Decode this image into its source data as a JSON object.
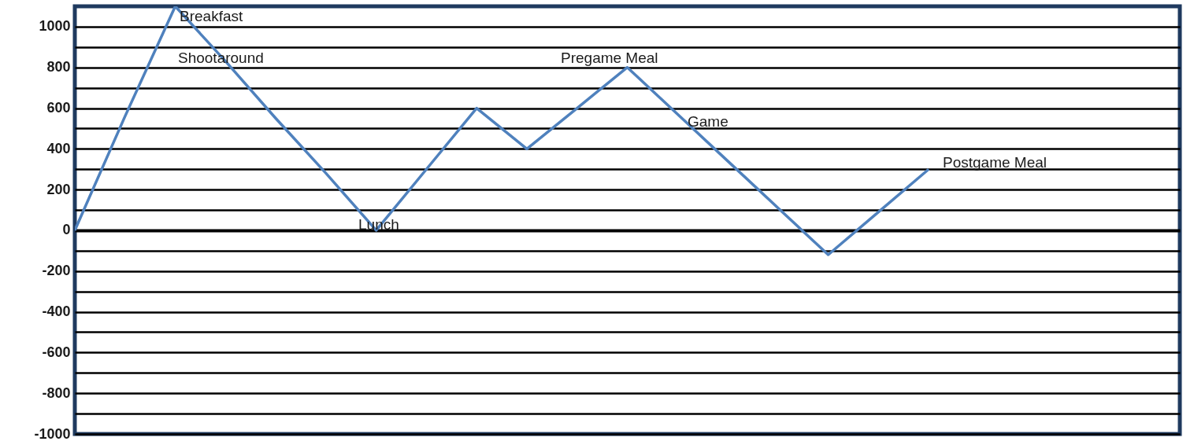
{
  "chart_data": {
    "type": "line",
    "categories": [
      null,
      null,
      null,
      null,
      null,
      null,
      null,
      null,
      null,
      null,
      null,
      null,
      null,
      null,
      null,
      null,
      null,
      null,
      null,
      null,
      null,
      null,
      null
    ],
    "series": [
      {
        "color": "#4f81bd",
        "values": [
          0,
          560,
          1100,
          830,
          550,
          280,
          0,
          300,
          600,
          400,
          600,
          800,
          570,
          340,
          110,
          -120,
          90,
          300,
          null,
          null,
          null,
          null,
          null
        ]
      }
    ],
    "ylim": [
      -1000,
      1100
    ],
    "yticks": [
      -1000,
      {
        "value": -900,
        "label": null
      },
      -800,
      {
        "value": -700,
        "label": null
      },
      -600,
      {
        "value": -500,
        "label": null
      },
      -400,
      {
        "value": -300,
        "label": null
      },
      -200,
      {
        "value": -100,
        "label": null
      },
      0,
      {
        "value": 100,
        "label": null
      },
      200,
      {
        "value": 300,
        "label": null
      },
      400,
      {
        "value": 500,
        "label": null
      },
      600,
      {
        "value": 700,
        "label": null
      },
      800,
      {
        "value": 900,
        "label": null
      },
      1000
    ],
    "grid": "y",
    "tick_labels": "y",
    "marker": "none",
    "line_style": "solid",
    "annotations": [
      "Breakfast",
      "Shootaround",
      "Lunch",
      "Pregame Meal",
      "Game",
      "Postgame Meal"
    ]
  }
}
